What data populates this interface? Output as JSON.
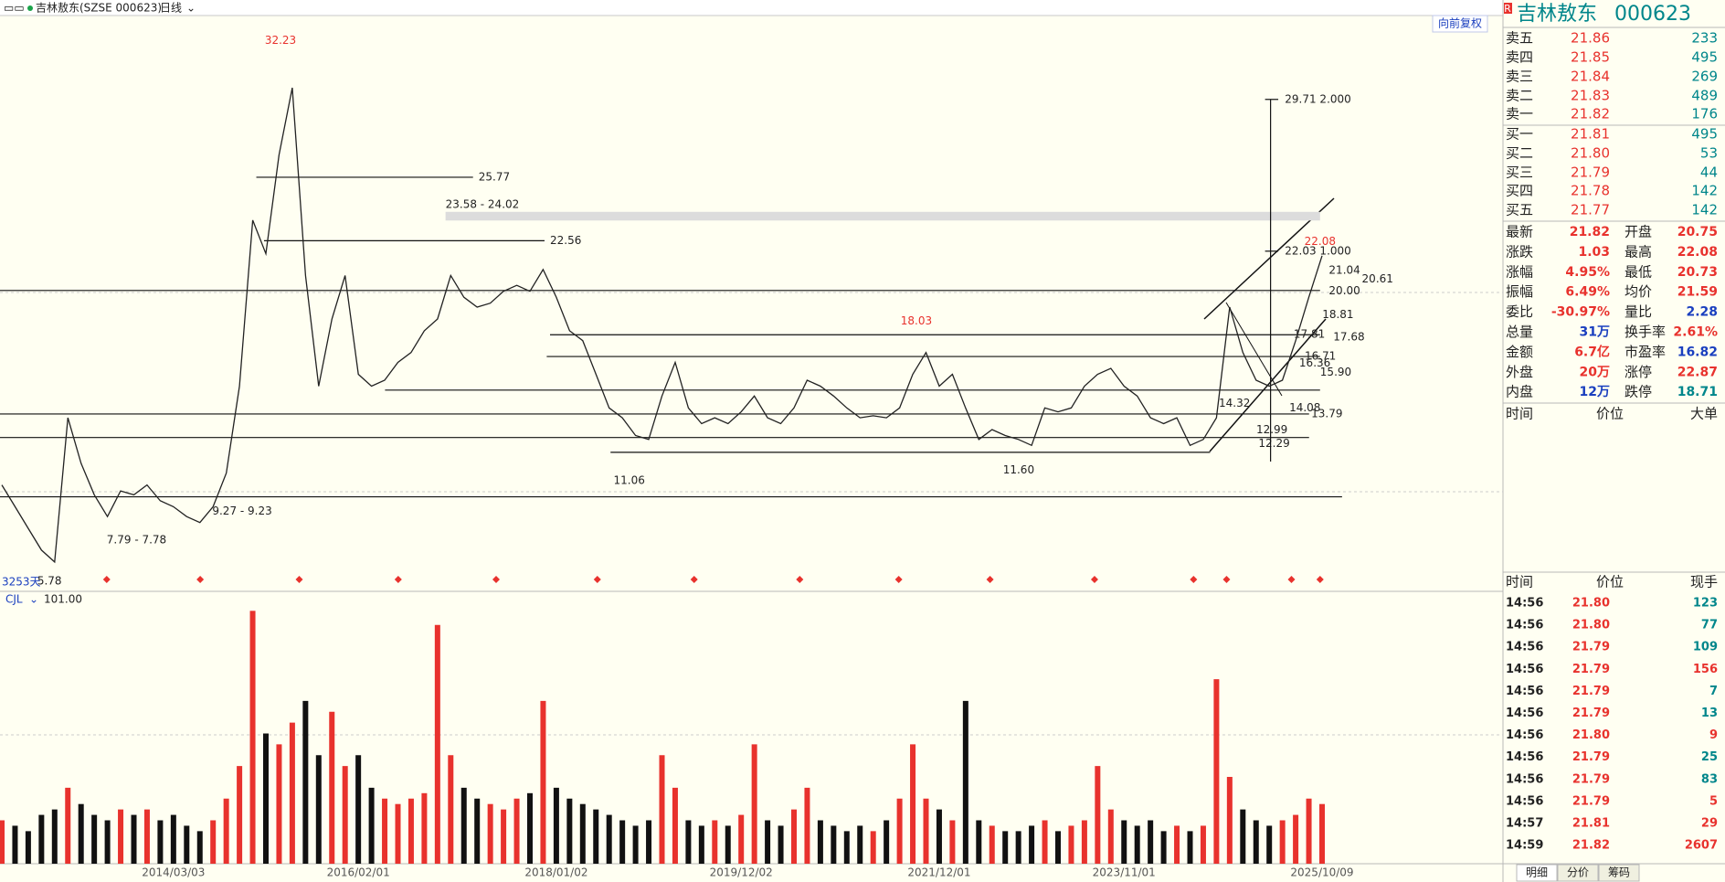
{
  "toolbar": {
    "title": "吉林敖东(SZSE 000623)",
    "period": "日线"
  },
  "chart_data": [
    {
      "type": "line",
      "mode_label": "向前复权",
      "span_label": "3253天",
      "color": "#222222",
      "ylim": [
        5,
        34
      ],
      "categories": [
        null,
        null,
        null,
        null,
        null,
        null,
        null,
        null,
        null,
        null,
        null,
        null,
        null,
        "2014/03/03",
        null,
        null,
        null,
        null,
        null,
        null,
        null,
        null,
        null,
        null,
        null,
        null,
        null,
        "2016/02/01",
        null,
        null,
        null,
        null,
        null,
        null,
        null,
        null,
        null,
        null,
        null,
        null,
        null,
        null,
        "2018/01/02",
        null,
        null,
        null,
        null,
        null,
        null,
        null,
        null,
        null,
        null,
        null,
        null,
        null,
        "2019/12/02",
        null,
        null,
        null,
        null,
        null,
        null,
        null,
        null,
        null,
        null,
        null,
        null,
        null,
        null,
        "2021/12/01",
        null,
        null,
        null,
        null,
        null,
        null,
        null,
        null,
        null,
        null,
        null,
        null,
        null,
        "2023/11/01",
        null,
        null,
        null,
        null,
        null,
        null,
        null,
        null,
        null,
        null,
        null,
        null,
        null,
        null,
        "2025/10/09"
      ],
      "values": [
        10.2,
        9.1,
        8.0,
        6.9,
        6.3,
        13.6,
        11.3,
        9.7,
        8.6,
        9.9,
        9.7,
        10.2,
        9.4,
        9.1,
        8.6,
        8.3,
        9.1,
        10.8,
        15.2,
        23.6,
        21.9,
        26.9,
        30.3,
        20.8,
        15.2,
        18.6,
        20.8,
        15.8,
        15.2,
        15.5,
        16.4,
        16.9,
        18.0,
        18.6,
        20.8,
        19.7,
        19.2,
        19.4,
        20.0,
        20.3,
        20.0,
        21.1,
        19.7,
        18.0,
        17.5,
        15.8,
        14.1,
        13.6,
        12.7,
        12.5,
        14.7,
        16.4,
        14.1,
        13.3,
        13.6,
        13.3,
        13.9,
        14.7,
        13.6,
        13.3,
        14.1,
        15.5,
        15.2,
        14.7,
        14.1,
        13.6,
        13.7,
        13.6,
        14.1,
        15.8,
        16.9,
        15.2,
        15.8,
        14.1,
        12.5,
        13.0,
        12.7,
        12.5,
        12.2,
        14.1,
        13.9,
        14.1,
        15.2,
        15.8,
        16.1,
        15.2,
        14.7,
        13.6,
        13.3,
        13.6,
        12.2,
        12.5,
        13.6,
        19.2,
        16.9,
        15.5,
        15.2,
        15.5,
        17.5,
        19.7,
        21.8
      ],
      "levels": [
        20.04,
        17.8,
        16.7,
        15.0,
        12.6,
        11.85,
        9.6
      ],
      "annotations": [
        {
          "text": "32.23",
          "value": 32.23,
          "color": "#e8322d"
        },
        {
          "text": "25.77",
          "value": 25.77
        },
        {
          "text": "23.58 - 24.02",
          "low": 23.58,
          "high": 24.02
        },
        {
          "text": "22.56",
          "value": 22.56
        },
        {
          "text": "18.03",
          "value": 18.03,
          "color": "#e8322d"
        },
        {
          "text": "11.06",
          "value": 11.06
        },
        {
          "text": "11.60",
          "value": 11.6
        },
        {
          "text": "5.78",
          "value": 5.78
        },
        {
          "text": "7.79 - 7.78",
          "low": 7.78,
          "high": 7.79
        },
        {
          "text": "9.27 - 9.23",
          "low": 9.23,
          "high": 9.27
        },
        {
          "text": "29.71  2.000",
          "value": 29.71
        },
        {
          "text": "22.03  1.000",
          "value": 22.03
        },
        {
          "text": "22.08",
          "value": 22.08,
          "color": "#e8322d"
        },
        {
          "text": "21.04",
          "value": 21.04
        },
        {
          "text": "20.61",
          "value": 20.61
        },
        {
          "text": "20.00",
          "value": 20.0
        },
        {
          "text": "18.81",
          "value": 18.81
        },
        {
          "text": "17.81",
          "value": 17.81
        },
        {
          "text": "17.68",
          "value": 17.68
        },
        {
          "text": "16.71",
          "value": 16.71
        },
        {
          "text": "16.36",
          "value": 16.36
        },
        {
          "text": "15.90",
          "value": 15.9
        },
        {
          "text": "14.32",
          "value": 14.32
        },
        {
          "text": "14.08",
          "value": 14.08
        },
        {
          "text": "13.79",
          "value": 13.79
        },
        {
          "text": "12.99",
          "value": 12.99
        },
        {
          "text": "12.29",
          "value": 12.29
        }
      ]
    },
    {
      "type": "bar",
      "title": "CJL",
      "value_label": "101.00",
      "ylim": [
        0,
        240
      ],
      "up_color": "#e8322d",
      "down_color": "#111111",
      "values": [
        40,
        35,
        30,
        45,
        50,
        70,
        55,
        45,
        40,
        50,
        45,
        50,
        40,
        45,
        35,
        30,
        40,
        60,
        90,
        233,
        120,
        110,
        130,
        150,
        100,
        140,
        90,
        100,
        70,
        60,
        55,
        60,
        65,
        220,
        100,
        70,
        60,
        55,
        50,
        60,
        65,
        150,
        70,
        60,
        55,
        50,
        45,
        40,
        35,
        40,
        100,
        70,
        40,
        35,
        40,
        35,
        45,
        110,
        40,
        35,
        50,
        70,
        40,
        35,
        30,
        35,
        30,
        40,
        60,
        110,
        60,
        50,
        40,
        150,
        40,
        35,
        30,
        30,
        35,
        40,
        30,
        35,
        40,
        90,
        50,
        40,
        35,
        40,
        30,
        35,
        30,
        35,
        170,
        80,
        50,
        40,
        35,
        40,
        45,
        60,
        55
      ]
    }
  ],
  "quote": {
    "badge": "R",
    "name": "吉林敖东",
    "code": "000623",
    "asks": [
      [
        "卖五",
        "21.86",
        "233"
      ],
      [
        "卖四",
        "21.85",
        "495"
      ],
      [
        "卖三",
        "21.84",
        "269"
      ],
      [
        "卖二",
        "21.83",
        "489"
      ],
      [
        "卖一",
        "21.82",
        "176"
      ]
    ],
    "bids": [
      [
        "买一",
        "21.81",
        "495"
      ],
      [
        "买二",
        "21.80",
        "53"
      ],
      [
        "买三",
        "21.79",
        "44"
      ],
      [
        "买四",
        "21.78",
        "142"
      ],
      [
        "买五",
        "21.77",
        "142"
      ]
    ],
    "stats": [
      [
        {
          "label": "最新",
          "value": "21.82",
          "color": "#e8322d"
        },
        {
          "label": "开盘",
          "value": "20.75",
          "color": "#e8322d"
        }
      ],
      [
        {
          "label": "涨跌",
          "value": "1.03",
          "color": "#e8322d"
        },
        {
          "label": "最高",
          "value": "22.08",
          "color": "#e8322d"
        }
      ],
      [
        {
          "label": "涨幅",
          "value": "4.95%",
          "color": "#e8322d"
        },
        {
          "label": "最低",
          "value": "20.73",
          "color": "#e8322d"
        }
      ],
      [
        {
          "label": "振幅",
          "value": "6.49%",
          "color": "#e8322d"
        },
        {
          "label": "均价",
          "value": "21.59",
          "color": "#e8322d"
        }
      ],
      [
        {
          "label": "委比",
          "value": "-30.97%",
          "color": "#e8322d"
        },
        {
          "label": "量比",
          "value": "2.28",
          "color": "#1a3fbf"
        }
      ],
      [
        {
          "label": "总量",
          "value": "31万",
          "color": "#1a3fbf"
        },
        {
          "label": "换手率",
          "value": "2.61%",
          "color": "#e8322d"
        }
      ],
      [
        {
          "label": "金额",
          "value": "6.7亿",
          "color": "#e8322d"
        },
        {
          "label": "市盈率",
          "value": "16.82",
          "color": "#1a3fbf"
        }
      ],
      [
        {
          "label": "外盘",
          "value": "20万",
          "color": "#e8322d"
        },
        {
          "label": "涨停",
          "value": "22.87",
          "color": "#e8322d"
        }
      ],
      [
        {
          "label": "内盘",
          "value": "12万",
          "color": "#1a3fbf"
        },
        {
          "label": "跌停",
          "value": "18.71",
          "color": "#00868b"
        }
      ]
    ],
    "big_orders_header": [
      "时间",
      "价位",
      "大单"
    ],
    "trades_header": [
      "时间",
      "价位",
      "现手"
    ],
    "trades": [
      {
        "time": "14:56",
        "price": "21.80",
        "volume": "123",
        "color": "#00868b"
      },
      {
        "time": "14:56",
        "price": "21.80",
        "volume": "77",
        "color": "#00868b"
      },
      {
        "time": "14:56",
        "price": "21.79",
        "volume": "109",
        "color": "#00868b"
      },
      {
        "time": "14:56",
        "price": "21.79",
        "volume": "156",
        "color": "#e8322d"
      },
      {
        "time": "14:56",
        "price": "21.79",
        "volume": "7",
        "color": "#00868b"
      },
      {
        "time": "14:56",
        "price": "21.79",
        "volume": "13",
        "color": "#00868b"
      },
      {
        "time": "14:56",
        "price": "21.80",
        "volume": "9",
        "color": "#e8322d"
      },
      {
        "time": "14:56",
        "price": "21.79",
        "volume": "25",
        "color": "#00868b"
      },
      {
        "time": "14:56",
        "price": "21.79",
        "volume": "83",
        "color": "#00868b"
      },
      {
        "time": "14:56",
        "price": "21.79",
        "volume": "5",
        "color": "#e8322d"
      },
      {
        "time": "14:57",
        "price": "21.81",
        "volume": "29",
        "color": "#e8322d"
      },
      {
        "time": "14:59",
        "price": "21.82",
        "volume": "2607",
        "color": "#e8322d"
      }
    ],
    "tabs": [
      "明细",
      "分价",
      "筹码"
    ]
  }
}
